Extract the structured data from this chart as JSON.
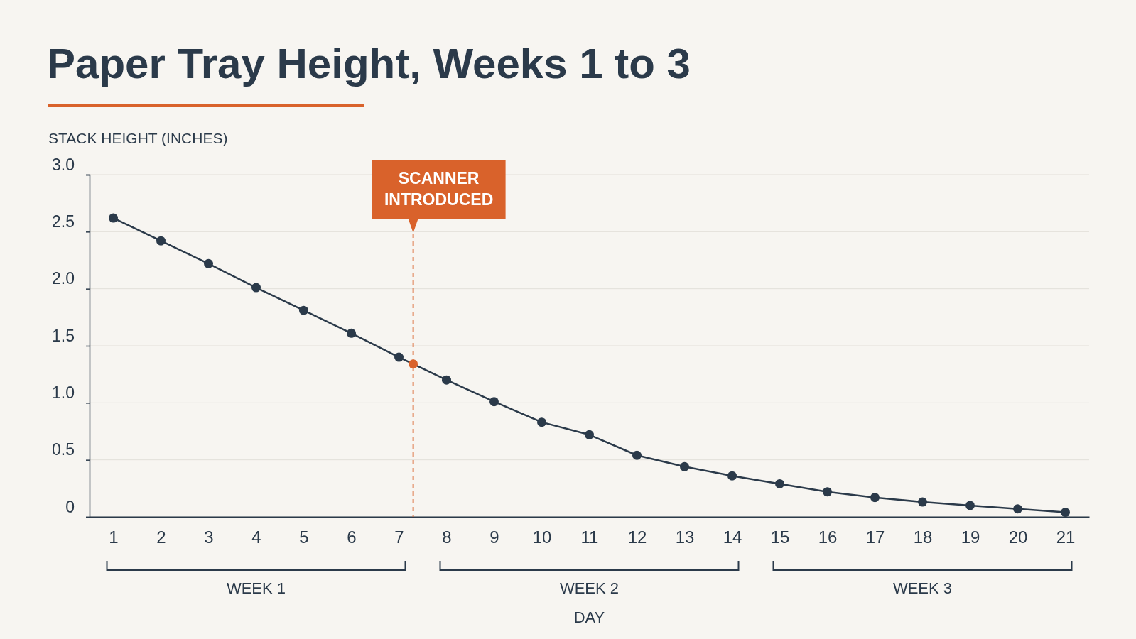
{
  "chart_data": {
    "type": "line",
    "title": "Paper Tray Height, Weeks 1 to 3",
    "xlabel": "DAY",
    "ylabel": "STACK HEIGHT (INCHES)",
    "x": [
      1,
      2,
      3,
      4,
      5,
      6,
      7,
      8,
      9,
      10,
      11,
      12,
      13,
      14,
      15,
      16,
      17,
      18,
      19,
      20,
      21
    ],
    "series": [
      {
        "color": "#2b3a4a",
        "values": [
          2.62,
          2.42,
          2.22,
          2.01,
          1.81,
          1.61,
          1.4,
          1.2,
          1.01,
          0.83,
          0.72,
          0.54,
          0.44,
          0.36,
          0.29,
          0.22,
          0.17,
          0.13,
          0.1,
          0.07,
          0.04
        ]
      },
      {
        "type": "scatter",
        "color": "#d9622b",
        "x": [
          7.3
        ],
        "values": [
          1.34
        ]
      }
    ],
    "xlim": [
      0.5,
      21.5
    ],
    "xticks": [
      1,
      2,
      3,
      4,
      5,
      6,
      7,
      8,
      9,
      10,
      11,
      12,
      13,
      14,
      15,
      16,
      17,
      18,
      19,
      20,
      21
    ],
    "ylim": [
      0,
      3
    ],
    "yticks": [
      0,
      0.5,
      {
        "value": 1,
        "label": "1.0"
      },
      1.5,
      {
        "value": 2,
        "label": "2.0"
      },
      2.5,
      {
        "value": 3,
        "label": "3.0"
      }
    ],
    "grid": "y",
    "marker": "circle",
    "line_style": "solid",
    "ref_lines": [
      {
        "axis": "x",
        "value": 7.3,
        "label": "SCANNER INTRODUCED",
        "color": "#d9622b",
        "line_style": "dashed"
      }
    ],
    "annotations": [
      "WEEK 1",
      "WEEK 2",
      "WEEK 3"
    ]
  }
}
